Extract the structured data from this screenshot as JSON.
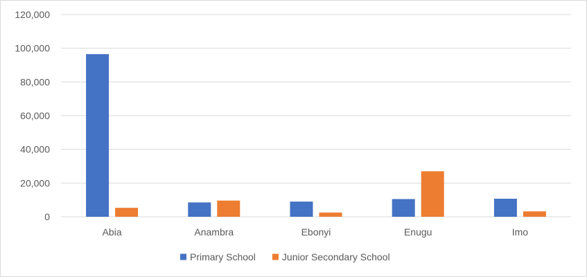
{
  "chart_data": {
    "type": "bar",
    "title": "",
    "xlabel": "",
    "ylabel": "",
    "categories": [
      "Abia",
      "Anambra",
      "Ebonyi",
      "Enugu",
      "Imo"
    ],
    "series": [
      {
        "name": "Primary School",
        "color": "#4472C4",
        "values": [
          96500,
          8500,
          9000,
          10500,
          10700
        ]
      },
      {
        "name": "Junior Secondary School",
        "color": "#ED7D31",
        "values": [
          5300,
          9600,
          2500,
          27000,
          3200
        ]
      }
    ],
    "ylim": [
      0,
      120000
    ],
    "yticks": [
      "0",
      "20,000",
      "40,000",
      "60,000",
      "80,000",
      "100,000",
      "120,000"
    ],
    "ytick_values": [
      0,
      20000,
      40000,
      60000,
      80000,
      100000,
      120000
    ],
    "grid": true,
    "legend_position": "bottom"
  }
}
